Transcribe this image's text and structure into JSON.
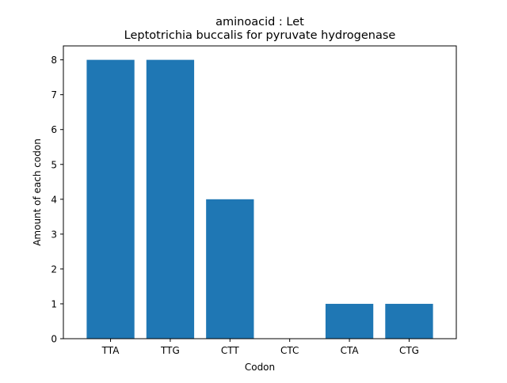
{
  "chart_data": {
    "type": "bar",
    "title": "aminoacid : Let",
    "subtitle": "Leptotrichia buccalis for pyruvate hydrogenase",
    "xlabel": "Codon",
    "ylabel": "Amount of each codon",
    "categories": [
      "TTA",
      "TTG",
      "CTT",
      "CTC",
      "CTA",
      "CTG"
    ],
    "values": [
      8,
      8,
      4,
      0,
      1,
      1
    ],
    "ylim": [
      0,
      8.4
    ],
    "yticks": [
      0,
      1,
      2,
      3,
      4,
      5,
      6,
      7,
      8
    ],
    "bar_color": "#1f77b4",
    "grid": false,
    "legend": "none"
  }
}
